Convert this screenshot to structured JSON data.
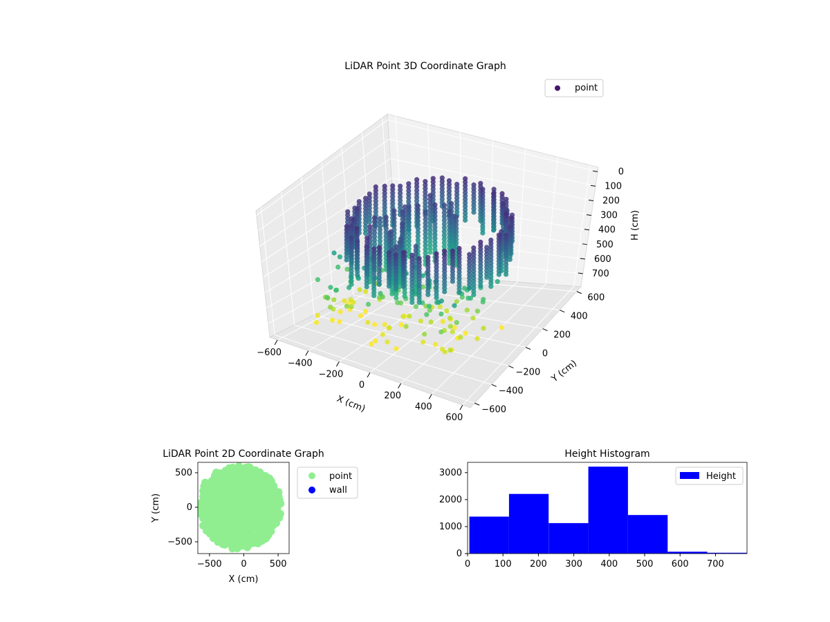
{
  "chart_data": [
    {
      "type": "scatter",
      "title": "LiDAR Point 3D Coordinate Graph",
      "xlabel": "X (cm)",
      "ylabel": "Y (cm)",
      "zlabel": "H (cm)",
      "x_ticks": [
        -600,
        -400,
        -200,
        0,
        200,
        400,
        600
      ],
      "y_ticks": [
        -600,
        -400,
        -200,
        0,
        200,
        400,
        600
      ],
      "z_ticks": [
        0,
        100,
        200,
        300,
        400,
        500,
        600,
        700
      ],
      "xlim": [
        -650,
        650
      ],
      "ylim": [
        -650,
        650
      ],
      "zlim": [
        790,
        -30
      ],
      "z_inverted": true,
      "colormap": "viridis",
      "legend": [
        {
          "name": "point",
          "color": "#46166b"
        }
      ],
      "legend_position": "top-right",
      "grid": true
    },
    {
      "type": "scatter",
      "title": "LiDAR Point 2D Coordinate Graph",
      "xlabel": "X (cm)",
      "ylabel": "Y (cm)",
      "x_ticks": [
        -500,
        0,
        500
      ],
      "y_ticks": [
        500,
        0,
        -500
      ],
      "xlim": [
        -670,
        660
      ],
      "ylim": [
        -670,
        650
      ],
      "series": [
        {
          "name": "point",
          "color": "#90ee90"
        },
        {
          "name": "wall",
          "color": "#0000ff"
        }
      ],
      "legend_position": "outside right",
      "grid": false
    },
    {
      "type": "bar",
      "title": "Height Histogram",
      "xlabel": "",
      "ylabel": "",
      "bin_edges": [
        5,
        117,
        229,
        341,
        453,
        565,
        677,
        789
      ],
      "values": [
        1370,
        2210,
        1130,
        3220,
        1430,
        70,
        30
      ],
      "x_ticks": [
        0,
        100,
        200,
        300,
        400,
        500,
        600,
        700
      ],
      "y_ticks": [
        0,
        1000,
        2000,
        3000
      ],
      "xlim": [
        0,
        789
      ],
      "ylim": [
        0,
        3380
      ],
      "legend": [
        {
          "name": "Height",
          "color": "#0000ff"
        }
      ],
      "legend_position": "top-right",
      "color": "#0000ff"
    }
  ]
}
